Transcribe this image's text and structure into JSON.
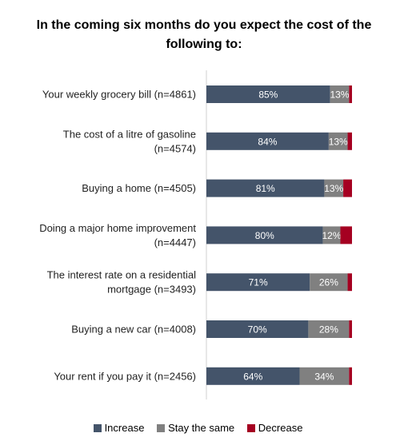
{
  "chart_data": {
    "type": "bar",
    "orientation": "horizontal",
    "stacked": true,
    "title": "In the coming six months do you expect the cost of the following to:",
    "categories": [
      "Your weekly grocery bill (n=4861)",
      "The cost of a litre of gasoline (n=4574)",
      "Buying a home (n=4505)",
      "Doing a major home improvement (n=4447)",
      "The interest rate on a residential mortgage (n=3493)",
      "Buying a new car (n=4008)",
      "Your rent if you pay it (n=2456)"
    ],
    "series": [
      {
        "name": "Increase",
        "values": [
          85,
          84,
          81,
          80,
          71,
          70,
          64
        ],
        "labels": [
          "85%",
          "84%",
          "81%",
          "80%",
          "71%",
          "70%",
          "64%"
        ],
        "color": "#44546A"
      },
      {
        "name": "Stay the same",
        "values": [
          13,
          13,
          13,
          12,
          26,
          28,
          34
        ],
        "labels": [
          "13%",
          "13%",
          "13%",
          "12%",
          "26%",
          "28%",
          "34%"
        ],
        "color": "#808080"
      },
      {
        "name": "Decrease",
        "values": [
          2,
          3,
          6,
          8,
          3,
          2,
          2
        ],
        "labels": [
          "",
          "",
          "",
          "",
          "",
          "",
          ""
        ],
        "color": "#A50021"
      }
    ],
    "xlim": [
      0,
      100
    ],
    "grid": false,
    "legend_position": "bottom"
  }
}
